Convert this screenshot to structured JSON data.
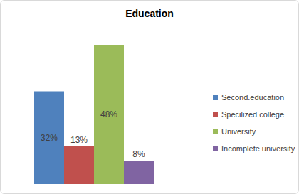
{
  "chart_data": {
    "type": "bar",
    "title": "Education",
    "categories": [
      null
    ],
    "series": [
      {
        "name": "Second.education",
        "color": "#4f81bd",
        "values": [
          32
        ],
        "value_labels": [
          "32%"
        ]
      },
      {
        "name": "Specilized college",
        "color": "#c0504d",
        "values": [
          13
        ],
        "value_labels": [
          "13%"
        ]
      },
      {
        "name": "University",
        "color": "#9bbb59",
        "values": [
          48
        ],
        "value_labels": [
          "48%"
        ]
      },
      {
        "name": "Incomplete university",
        "color": "#8064a2",
        "values": [
          8
        ],
        "value_labels": [
          "8%"
        ]
      }
    ],
    "ylim": [
      0,
      50
    ],
    "grid": false,
    "legend": "right",
    "data_labels": true,
    "tick_labels": false
  }
}
